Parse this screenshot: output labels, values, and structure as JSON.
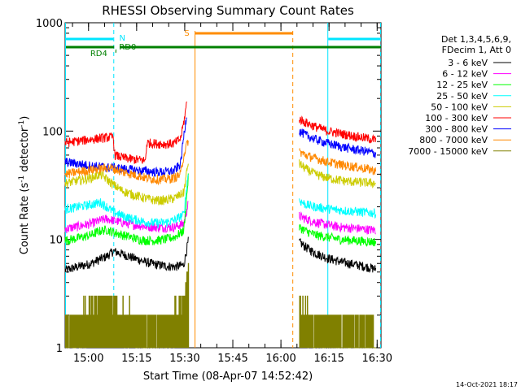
{
  "chart_data": {
    "type": "line",
    "title": "RHESSI Observing Summary Count Rates",
    "xlabel": "Start Time (08-Apr-07 14:52:42)",
    "ylabel_main": "Count Rate (s",
    "ylabel_sup1": "-1",
    "ylabel_mid": " detector",
    "ylabel_sup2": "-1",
    "ylabel_end": ")",
    "x_range_minutes": [
      0,
      98.5
    ],
    "y_scale": "log",
    "y_range": [
      1,
      1000
    ],
    "y_ticks": [
      {
        "value": 1,
        "label": "1"
      },
      {
        "value": 10,
        "label": "10"
      },
      {
        "value": 100,
        "label": "100"
      },
      {
        "value": 1000,
        "label": "1000"
      }
    ],
    "x_ticks": [
      {
        "minute": 7.3,
        "label": "15:00"
      },
      {
        "minute": 22.3,
        "label": "15:15"
      },
      {
        "minute": 37.3,
        "label": "15:30"
      },
      {
        "minute": 52.3,
        "label": "15:45"
      },
      {
        "minute": 67.3,
        "label": "16:00"
      },
      {
        "minute": 82.3,
        "label": "16:15"
      },
      {
        "minute": 97.3,
        "label": "16:30"
      }
    ],
    "legend": {
      "header1": "Det 1,3,4,5,6,9,",
      "header2": "FDecim 1, Att 0",
      "position": "right"
    },
    "series": [
      {
        "name": "3 - 6 keV",
        "color": "#000000",
        "seg1": [
          [
            0,
            5.2
          ],
          [
            4,
            5.6
          ],
          [
            8,
            6.0
          ],
          [
            11,
            6.6
          ],
          [
            13,
            7.0
          ],
          [
            15,
            7.8
          ],
          [
            18,
            7.3
          ],
          [
            21,
            6.8
          ],
          [
            23,
            6.5
          ],
          [
            25,
            6.2
          ],
          [
            28,
            5.9
          ],
          [
            31,
            5.7
          ],
          [
            34,
            5.6
          ],
          [
            37,
            5.8
          ],
          [
            38.5,
            10
          ]
        ],
        "seg2": [
          [
            73,
            9.5
          ],
          [
            75,
            8.5
          ],
          [
            78,
            7.5
          ],
          [
            82,
            6.7
          ],
          [
            86,
            6.2
          ],
          [
            90,
            5.9
          ],
          [
            94,
            5.6
          ],
          [
            97,
            5.3
          ]
        ]
      },
      {
        "name": "6 - 12 keV",
        "color": "#ff00ff",
        "seg1": [
          [
            0,
            12.5
          ],
          [
            4,
            13.2
          ],
          [
            8,
            14.0
          ],
          [
            11,
            15.0
          ],
          [
            13,
            15.5
          ],
          [
            15,
            15.0
          ],
          [
            18,
            14.3
          ],
          [
            21,
            13.7
          ],
          [
            23,
            13.5
          ],
          [
            25,
            13.2
          ],
          [
            28,
            13.0
          ],
          [
            31,
            12.9
          ],
          [
            34,
            13.0
          ],
          [
            37,
            14
          ],
          [
            38.5,
            22
          ]
        ],
        "seg2": [
          [
            73,
            16.5
          ],
          [
            75,
            15.5
          ],
          [
            78,
            14.5
          ],
          [
            82,
            13.6
          ],
          [
            86,
            13.0
          ],
          [
            90,
            12.7
          ],
          [
            94,
            12.4
          ],
          [
            97,
            12.2
          ]
        ]
      },
      {
        "name": "12 - 25 keV",
        "color": "#00ff00",
        "seg1": [
          [
            0,
            9.8
          ],
          [
            4,
            10.3
          ],
          [
            8,
            11.0
          ],
          [
            11,
            12.0
          ],
          [
            13,
            12.3
          ],
          [
            15,
            11.7
          ],
          [
            18,
            11.0
          ],
          [
            21,
            10.4
          ],
          [
            23,
            10.0
          ],
          [
            25,
            9.8
          ],
          [
            28,
            9.8
          ],
          [
            31,
            10.0
          ],
          [
            34,
            10.5
          ],
          [
            37,
            12
          ],
          [
            38.5,
            40
          ]
        ],
        "seg2": [
          [
            73,
            13.0
          ],
          [
            75,
            12.0
          ],
          [
            78,
            11.0
          ],
          [
            82,
            10.5
          ],
          [
            86,
            10.0
          ],
          [
            90,
            9.8
          ],
          [
            94,
            9.6
          ],
          [
            97,
            9.5
          ]
        ]
      },
      {
        "name": "25 - 50 keV",
        "color": "#00ffff",
        "seg1": [
          [
            0,
            19
          ],
          [
            4,
            20
          ],
          [
            8,
            21
          ],
          [
            11,
            22
          ],
          [
            13,
            20
          ],
          [
            15,
            18
          ],
          [
            18,
            16.5
          ],
          [
            21,
            15.5
          ],
          [
            23,
            15.0
          ],
          [
            25,
            14.5
          ],
          [
            28,
            14.2
          ],
          [
            31,
            14.3
          ],
          [
            34,
            15.0
          ],
          [
            37,
            17
          ],
          [
            38.5,
            45
          ]
        ],
        "seg2": [
          [
            73,
            23
          ],
          [
            75,
            21
          ],
          [
            78,
            20
          ],
          [
            82,
            19.2
          ],
          [
            86,
            18.6
          ],
          [
            90,
            18.2
          ],
          [
            94,
            17.8
          ],
          [
            97,
            17.5
          ]
        ]
      },
      {
        "name": "50 - 100 keV",
        "color": "#cccc00",
        "seg1": [
          [
            0,
            33
          ],
          [
            4,
            35
          ],
          [
            8,
            37
          ],
          [
            11,
            40
          ],
          [
            13,
            36
          ],
          [
            15,
            32
          ],
          [
            18,
            28
          ],
          [
            21,
            26
          ],
          [
            23,
            25
          ],
          [
            25,
            24
          ],
          [
            28,
            23
          ],
          [
            31,
            23
          ],
          [
            34,
            24
          ],
          [
            37,
            27
          ],
          [
            38.5,
            55
          ]
        ],
        "seg2": [
          [
            73,
            50
          ],
          [
            75,
            45
          ],
          [
            78,
            40
          ],
          [
            82,
            37
          ],
          [
            86,
            35
          ],
          [
            90,
            34
          ],
          [
            94,
            33.5
          ],
          [
            97,
            33
          ]
        ]
      },
      {
        "name": "100 - 300 keV",
        "color": "#ff0000",
        "seg1": [
          [
            0,
            78
          ],
          [
            4,
            81
          ],
          [
            8,
            84
          ],
          [
            11,
            86
          ],
          [
            14,
            88
          ],
          [
            15,
            88
          ],
          [
            15.5,
            60
          ],
          [
            18,
            57
          ],
          [
            21,
            55
          ],
          [
            24,
            54
          ],
          [
            25,
            53
          ],
          [
            25.5,
            78
          ],
          [
            28,
            77
          ],
          [
            31,
            76
          ],
          [
            34,
            77
          ],
          [
            36,
            85
          ],
          [
            37,
            120
          ],
          [
            38,
            190
          ]
        ],
        "seg2": [
          [
            73,
            130
          ],
          [
            75,
            120
          ],
          [
            78,
            110
          ],
          [
            82,
            100
          ],
          [
            86,
            95
          ],
          [
            90,
            90
          ],
          [
            94,
            86
          ],
          [
            97,
            83
          ]
        ]
      },
      {
        "name": "300 - 800 keV",
        "color": "#0000ff",
        "seg1": [
          [
            0,
            52
          ],
          [
            4,
            50
          ],
          [
            8,
            48
          ],
          [
            11,
            47
          ],
          [
            14,
            46
          ],
          [
            15,
            46
          ],
          [
            18,
            45
          ],
          [
            21,
            44
          ],
          [
            24,
            43
          ],
          [
            25,
            43
          ],
          [
            28,
            42
          ],
          [
            31,
            42
          ],
          [
            34,
            43
          ],
          [
            36,
            50
          ],
          [
            37,
            90
          ],
          [
            38,
            150
          ]
        ],
        "seg2": [
          [
            73,
            100
          ],
          [
            75,
            92
          ],
          [
            78,
            84
          ],
          [
            82,
            77
          ],
          [
            86,
            72
          ],
          [
            90,
            68
          ],
          [
            94,
            65
          ],
          [
            97,
            62
          ]
        ]
      },
      {
        "name": "800 - 7000 keV",
        "color": "#ff8800",
        "seg1": [
          [
            0,
            40
          ],
          [
            4,
            42
          ],
          [
            8,
            44
          ],
          [
            11,
            45
          ],
          [
            14,
            46
          ],
          [
            15,
            45
          ],
          [
            18,
            42
          ],
          [
            21,
            40
          ],
          [
            24,
            38
          ],
          [
            25,
            37
          ],
          [
            28,
            36
          ],
          [
            31,
            36
          ],
          [
            34,
            37
          ],
          [
            36,
            40
          ],
          [
            37,
            60
          ],
          [
            38.5,
            85
          ]
        ],
        "seg2": [
          [
            73,
            65
          ],
          [
            75,
            60
          ],
          [
            78,
            56
          ],
          [
            82,
            52
          ],
          [
            86,
            49
          ],
          [
            90,
            47
          ],
          [
            94,
            45
          ],
          [
            97,
            43
          ]
        ]
      },
      {
        "name": "7000 - 15000 keV",
        "color": "#808000",
        "seg1": [
          [
            0,
            1.5
          ],
          [
            5,
            1.8
          ],
          [
            10,
            2.5
          ],
          [
            13,
            2.8
          ],
          [
            18,
            2.0
          ],
          [
            23,
            1.7
          ],
          [
            28,
            1.6
          ],
          [
            33,
            1.8
          ],
          [
            36,
            2.2
          ],
          [
            37.5,
            3.5
          ],
          [
            38.5,
            6
          ]
        ],
        "seg2": [
          [
            73,
            2.2
          ],
          [
            75,
            1.9
          ],
          [
            78,
            1.7
          ],
          [
            82,
            1.5
          ],
          [
            86,
            1.4
          ],
          [
            90,
            1.3
          ],
          [
            94,
            1.3
          ],
          [
            97,
            1.2
          ]
        ]
      }
    ],
    "flags": {
      "n_label": "N",
      "rd0_label": "RD0",
      "rd4_label": "RD4",
      "s_label": "S",
      "night_intervals": [
        [
          0,
          15.3
        ],
        [
          81.8,
          98.5
        ]
      ],
      "saa_interval": [
        40.5,
        71.0
      ],
      "decim_rd0_interval": [
        17.0,
        98.5
      ],
      "decim_rd4_interval": [
        0,
        15.3
      ]
    },
    "timestamp": "14-Oct-2021 18:17"
  },
  "colors": {
    "night": "#00e5ff",
    "saa": "#ff8c00",
    "decim": "#008000"
  }
}
